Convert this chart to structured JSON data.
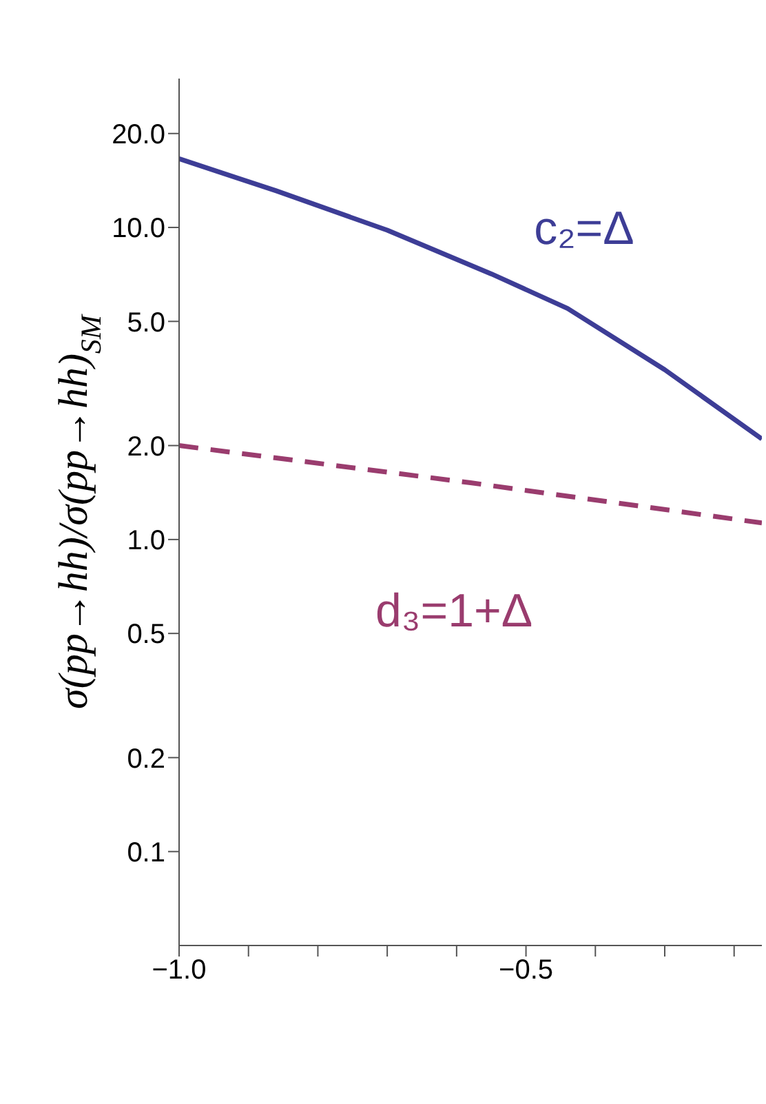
{
  "chart_data": {
    "type": "line",
    "ylabel": "σ(pp→hh)/σ(pp→hh)$_{SM}$",
    "log": "y",
    "grid": false,
    "legend": false,
    "marker": "none",
    "xlim": [
      -1,
      -0.16
    ],
    "ylim": [
      0.05,
      30
    ],
    "xticks": [
      {
        "value": -1,
        "label": "−1.0"
      },
      {
        "value": -0.9,
        "label": null
      },
      {
        "value": -0.8,
        "label": null
      },
      {
        "value": -0.7,
        "label": null
      },
      {
        "value": -0.6,
        "label": null
      },
      {
        "value": -0.5,
        "label": "−0.5"
      },
      {
        "value": -0.4,
        "label": null
      },
      {
        "value": -0.3,
        "label": null
      },
      {
        "value": -0.2,
        "label": null
      }
    ],
    "yticks": [
      {
        "value": 0.1,
        "label": "0.1"
      },
      {
        "value": 0.2,
        "label": "0.2"
      },
      {
        "value": 0.5,
        "label": "0.5"
      },
      {
        "value": 1,
        "label": "1.0"
      },
      {
        "value": 2,
        "label": "2.0"
      },
      {
        "value": 5,
        "label": "5.0"
      },
      {
        "value": 10,
        "label": "10.0"
      },
      {
        "value": 20,
        "label": "20.0"
      }
    ],
    "series": [
      {
        "name": "c₂=Δ",
        "color": "#3d3d96",
        "line_style": "solid",
        "x": [
          -1,
          -0.86,
          -0.7,
          -0.55,
          -0.44,
          -0.3,
          -0.16
        ],
        "values": [
          16.6,
          13.1,
          9.8,
          7.1,
          5.5,
          3.5,
          2.1
        ]
      },
      {
        "name": "d₃=1+Δ",
        "color": "#9a3c6e",
        "line_style": "dashed",
        "x": [
          -1,
          -0.58,
          -0.16
        ],
        "values": [
          2.0,
          1.52,
          1.13
        ]
      }
    ]
  }
}
